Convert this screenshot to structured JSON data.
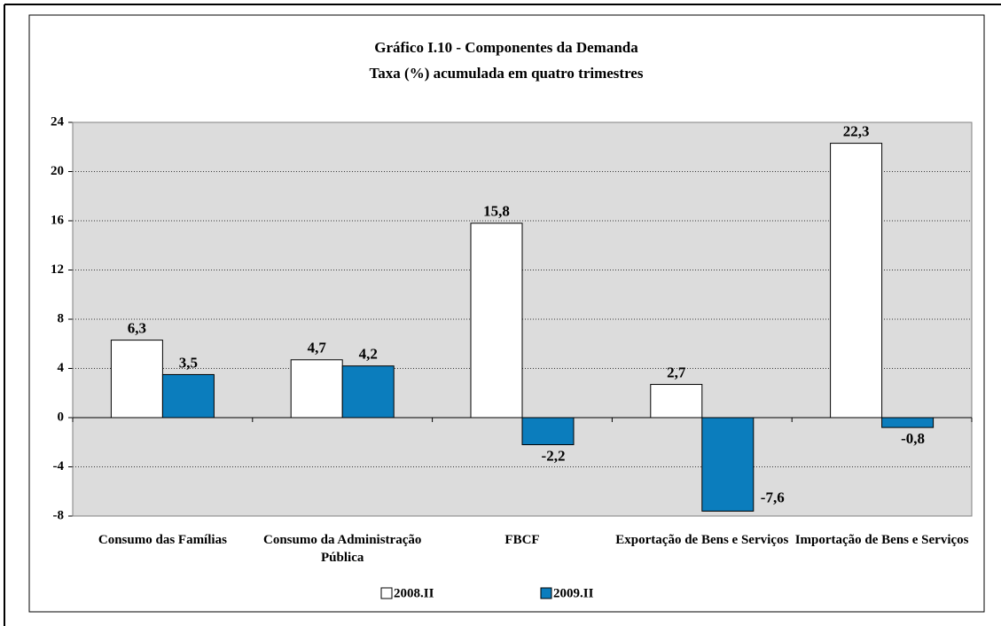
{
  "chart_data": {
    "type": "bar",
    "title": "Gráfico I.10 - Componentes da Demanda",
    "subtitle": "Taxa (%) acumulada em quatro trimestres",
    "categories": [
      "Consumo das Famílias",
      "Consumo da Administração Pública",
      "FBCF",
      "Exportação de Bens e Serviços",
      "Importação de Bens e Serviços"
    ],
    "series": [
      {
        "name": "2008.II",
        "color": "#ffffff",
        "values": [
          6.3,
          4.7,
          15.8,
          2.7,
          22.3
        ],
        "value_labels": [
          "6,3",
          "4,7",
          "15,8",
          "2,7",
          "22,3"
        ]
      },
      {
        "name": "2009.II",
        "color": "#0b7dbd",
        "values": [
          3.5,
          4.2,
          -2.2,
          -7.6,
          -0.8
        ],
        "value_labels": [
          "3,5",
          "4,2",
          "-2,2",
          "-7,6",
          "-0,8"
        ]
      }
    ],
    "ylim": [
      -8,
      24
    ],
    "yticks": [
      -8,
      -4,
      0,
      4,
      8,
      12,
      16,
      20,
      24
    ],
    "grid": true,
    "legend": "bottom"
  }
}
